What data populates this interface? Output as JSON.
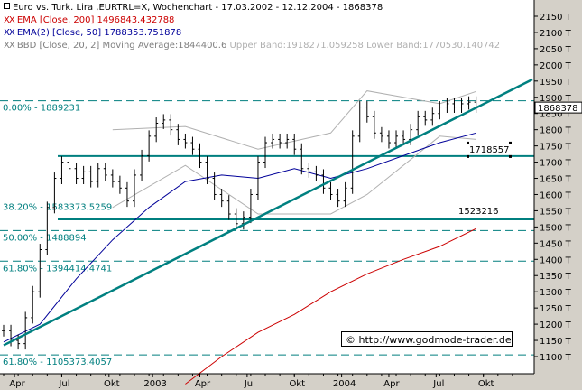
{
  "legend": {
    "line1": "Euro vs. Turk. Lira ,EURTRL=X, Wochenchart - 17.03.2002 - 12.12.2004 - 1868378",
    "line2": "EMA [Close, 200] 1496843.432788",
    "line3": "EMA(2) [Close, 50] 1788353.751878",
    "line4_main": "BBD [Close, 20, 2] Moving Average:1844400.6",
    "line4_bands": " Upper Band:1918271.059258 Lower Band:1770530.140742",
    "colors": {
      "price": "#000000",
      "ema200": "#cc0000",
      "ema50": "#000099",
      "bbd": "#a0a0a0"
    }
  },
  "credit": "© http://www.godmode-trader.de",
  "chart_data": {
    "type": "line",
    "title": "Euro vs. Turk. Lira ,EURTRL=X, Wochenchart - 17.03.2002 - 12.12.2004 - 1868378",
    "x_ticks": [
      "Apr",
      "Jul",
      "Okt",
      "2003",
      "Apr",
      "Jul",
      "Okt",
      "2004",
      "Apr",
      "Jul",
      "Okt"
    ],
    "y_ticks": [
      "2150 T",
      "2100 T",
      "2050 T",
      "2000 T",
      "1950 T",
      "1900 T",
      "1850 T",
      "1800 T",
      "1750 T",
      "1700 T",
      "1650 T",
      "1600 T",
      "1550 T",
      "1500 T",
      "1450 T",
      "1400 T",
      "1350 T",
      "1300 T",
      "1250 T",
      "1200 T",
      "1150 T",
      "1100 T"
    ],
    "y_tick_values": [
      2150,
      2100,
      2050,
      2000,
      1950,
      1900,
      1850,
      1800,
      1750,
      1700,
      1650,
      1600,
      1550,
      1500,
      1450,
      1400,
      1350,
      1300,
      1250,
      1200,
      1150,
      1100
    ],
    "ylim": [
      1085,
      2180
    ],
    "x_tick_weeks": [
      3,
      16,
      29,
      41,
      54,
      67,
      80,
      93,
      106,
      119,
      132
    ],
    "week_count": 143,
    "current_value": "1868378",
    "fib_levels": [
      {
        "label": "0.00% - 1889231",
        "value": 1889.231
      },
      {
        "label": "38.20% - 1583373.5259",
        "value": 1583.3735
      },
      {
        "label": "50.00% - 1488894",
        "value": 1488.894
      },
      {
        "label": "61.80% - 1394414.4741",
        "value": 1394.4145
      },
      {
        "label": "61.80% - 1105373.4057",
        "value": 1105.3734
      }
    ],
    "horizontal_lines": [
      {
        "label": "1718557",
        "value": 1718.557
      },
      {
        "label": "1523216",
        "value": 1523.216
      }
    ],
    "trendline": {
      "start": [
        0,
        1135
      ],
      "end": [
        143,
        1955
      ]
    },
    "price_close": [
      [
        0,
        1180
      ],
      [
        2,
        1150
      ],
      [
        4,
        1140
      ],
      [
        6,
        1220
      ],
      [
        8,
        1300
      ],
      [
        10,
        1430
      ],
      [
        12,
        1560
      ],
      [
        14,
        1650
      ],
      [
        16,
        1700
      ],
      [
        18,
        1680
      ],
      [
        20,
        1650
      ],
      [
        22,
        1670
      ],
      [
        24,
        1640
      ],
      [
        26,
        1680
      ],
      [
        28,
        1660
      ],
      [
        30,
        1640
      ],
      [
        32,
        1620
      ],
      [
        34,
        1580
      ],
      [
        36,
        1660
      ],
      [
        38,
        1720
      ],
      [
        40,
        1780
      ],
      [
        42,
        1820
      ],
      [
        44,
        1830
      ],
      [
        46,
        1800
      ],
      [
        48,
        1770
      ],
      [
        50,
        1760
      ],
      [
        52,
        1740
      ],
      [
        54,
        1700
      ],
      [
        56,
        1650
      ],
      [
        58,
        1600
      ],
      [
        60,
        1580
      ],
      [
        62,
        1540
      ],
      [
        64,
        1510
      ],
      [
        66,
        1530
      ],
      [
        68,
        1600
      ],
      [
        70,
        1700
      ],
      [
        72,
        1760
      ],
      [
        74,
        1770
      ],
      [
        76,
        1760
      ],
      [
        78,
        1770
      ],
      [
        80,
        1740
      ],
      [
        82,
        1680
      ],
      [
        84,
        1670
      ],
      [
        86,
        1660
      ],
      [
        88,
        1620
      ],
      [
        90,
        1600
      ],
      [
        92,
        1580
      ],
      [
        94,
        1620
      ],
      [
        96,
        1780
      ],
      [
        98,
        1870
      ],
      [
        100,
        1840
      ],
      [
        102,
        1790
      ],
      [
        104,
        1780
      ],
      [
        106,
        1760
      ],
      [
        108,
        1780
      ],
      [
        110,
        1770
      ],
      [
        112,
        1800
      ],
      [
        114,
        1840
      ],
      [
        116,
        1830
      ],
      [
        118,
        1850
      ],
      [
        120,
        1870
      ],
      [
        122,
        1880
      ],
      [
        124,
        1870
      ],
      [
        126,
        1880
      ],
      [
        128,
        1885
      ],
      [
        130,
        1870
      ]
    ],
    "ema50": [
      [
        0,
        1145
      ],
      [
        10,
        1200
      ],
      [
        20,
        1340
      ],
      [
        30,
        1460
      ],
      [
        40,
        1560
      ],
      [
        50,
        1640
      ],
      [
        60,
        1660
      ],
      [
        70,
        1650
      ],
      [
        80,
        1680
      ],
      [
        90,
        1650
      ],
      [
        100,
        1680
      ],
      [
        110,
        1720
      ],
      [
        120,
        1760
      ],
      [
        130,
        1790
      ]
    ],
    "ema200": [
      [
        50,
        1015
      ],
      [
        60,
        1100
      ],
      [
        70,
        1175
      ],
      [
        80,
        1230
      ],
      [
        90,
        1300
      ],
      [
        100,
        1355
      ],
      [
        110,
        1400
      ],
      [
        120,
        1440
      ],
      [
        130,
        1495
      ]
    ],
    "bb_upper": [
      [
        30,
        1800
      ],
      [
        50,
        1810
      ],
      [
        70,
        1740
      ],
      [
        90,
        1790
      ],
      [
        100,
        1920
      ],
      [
        120,
        1880
      ],
      [
        130,
        1918
      ]
    ],
    "bb_lower": [
      [
        30,
        1560
      ],
      [
        50,
        1690
      ],
      [
        70,
        1540
      ],
      [
        90,
        1540
      ],
      [
        100,
        1600
      ],
      [
        120,
        1780
      ],
      [
        130,
        1770
      ]
    ]
  }
}
